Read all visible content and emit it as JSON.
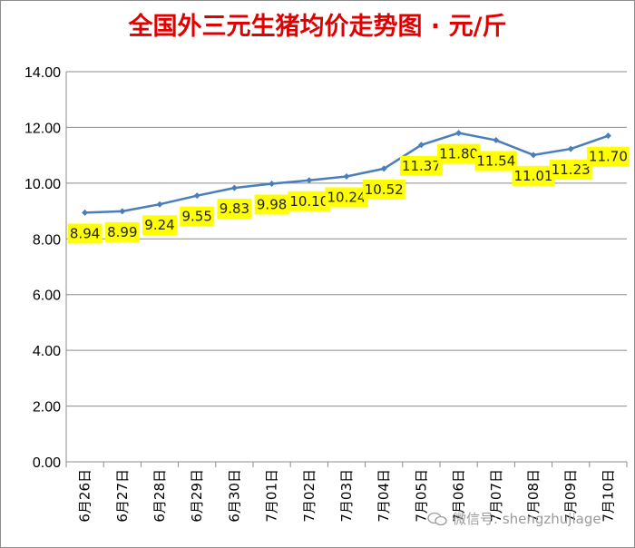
{
  "chart_data": {
    "type": "line",
    "title": "全国外三元生猪均价走势图 · 元/斤",
    "categories": [
      "6月26日",
      "6月27日",
      "6月28日",
      "6月29日",
      "6月30日",
      "7月01日",
      "7月02日",
      "7月03日",
      "7月04日",
      "7月05日",
      "7月06日",
      "7月07日",
      "7月08日",
      "7月09日",
      "7月10日"
    ],
    "series": [
      {
        "values": [
          8.94,
          8.99,
          9.24,
          9.55,
          9.83,
          9.98,
          10.1,
          10.24,
          10.52,
          11.37,
          11.8,
          11.54,
          11.01,
          11.23,
          11.7
        ]
      }
    ],
    "data_labels": [
      "8.94",
      "8.99",
      "9.24",
      "9.55",
      "9.83",
      "9.98",
      "10.10",
      "10.24",
      "10.52",
      "11.37",
      "11.80",
      "11.54",
      "11.01",
      "11.23",
      "11.70"
    ],
    "y_ticks": [
      "0.00",
      "2.00",
      "4.00",
      "6.00",
      "8.00",
      "10.00",
      "12.00",
      "14.00"
    ],
    "ylim": [
      0,
      14
    ],
    "grid": true,
    "line_color": "#4a7ebb",
    "label_bg": "#ffff00"
  },
  "watermark": "微信号: shengzhujiage"
}
